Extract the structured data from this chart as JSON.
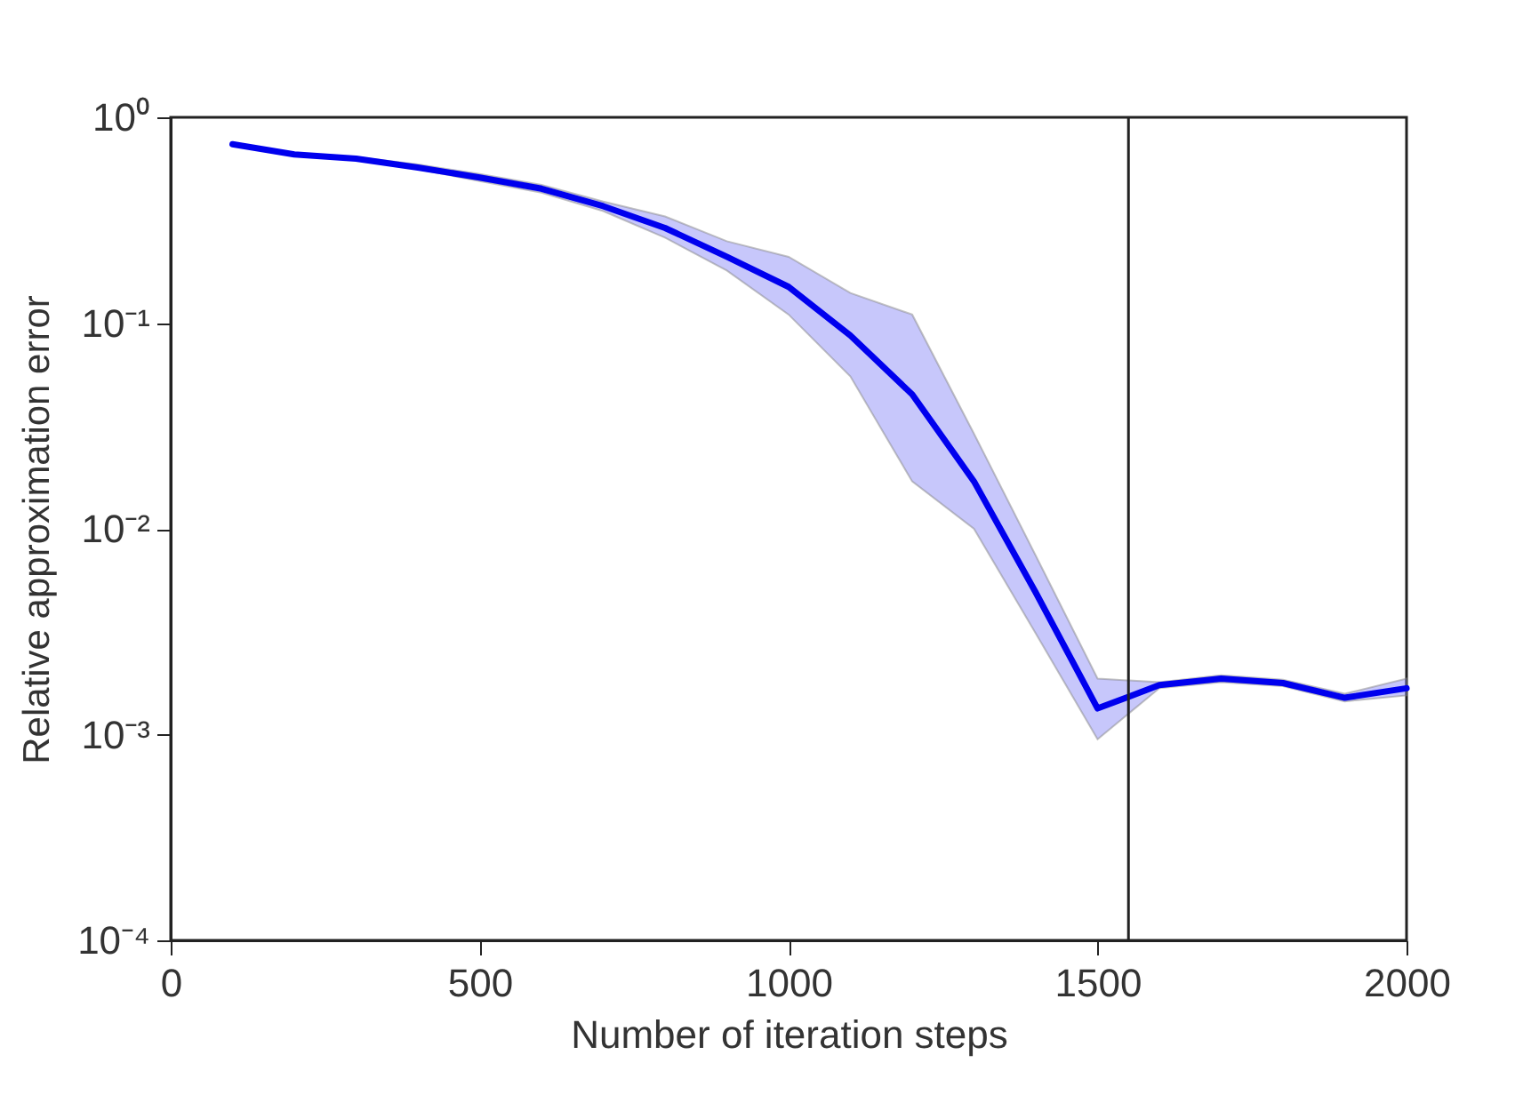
{
  "chart_data": {
    "type": "line",
    "xlabel": "Number of iteration steps",
    "ylabel": "Relative approximation error",
    "x": [
      100,
      200,
      300,
      400,
      500,
      600,
      700,
      800,
      900,
      1000,
      1100,
      1200,
      1300,
      1400,
      1500,
      1600,
      1700,
      1800,
      1900,
      2000
    ],
    "series": [
      {
        "color": "#0000ee",
        "values": [
          0.74,
          0.66,
          0.63,
          0.57,
          0.51,
          0.45,
          0.37,
          0.29,
          0.21,
          0.15,
          0.087,
          0.045,
          0.017,
          0.0049,
          0.00134,
          0.00174,
          0.00187,
          0.00178,
          0.00151,
          0.00168
        ],
        "lower": [
          0.74,
          0.66,
          0.62,
          0.56,
          0.49,
          0.43,
          0.35,
          0.26,
          0.18,
          0.11,
          0.055,
          0.017,
          0.01,
          0.0031,
          0.00095,
          0.00168,
          0.0018,
          0.00172,
          0.00145,
          0.00155
        ],
        "upper": [
          0.75,
          0.67,
          0.64,
          0.59,
          0.53,
          0.47,
          0.39,
          0.33,
          0.25,
          0.21,
          0.14,
          0.11,
          0.029,
          0.0074,
          0.00187,
          0.0018,
          0.00194,
          0.00185,
          0.00158,
          0.00187
        ]
      }
    ],
    "xlim": [
      0,
      2000
    ],
    "xticks": [
      0,
      500,
      1000,
      1500,
      2000
    ],
    "ylim": [
      0.0001,
      1
    ],
    "yticks": [
      {
        "value": 0.0001,
        "label": "10⁻⁴"
      },
      {
        "value": 0.001,
        "label": "10⁻³"
      },
      {
        "value": 0.01,
        "label": "10⁻²"
      },
      {
        "value": 0.1,
        "label": "10⁻¹"
      },
      {
        "value": 1,
        "label": "10⁰"
      }
    ],
    "log": "y",
    "ref_lines": [
      {
        "axis": "x",
        "value": 1550,
        "color": "#222222"
      }
    ],
    "line_style": "solid",
    "marker": "none",
    "grid": false
  }
}
